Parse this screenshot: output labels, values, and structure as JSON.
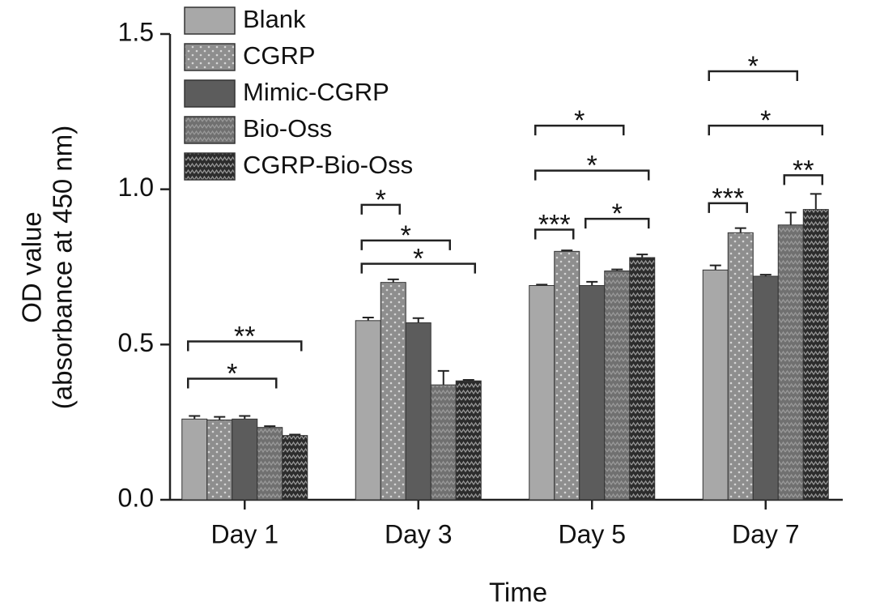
{
  "chart_data": {
    "type": "bar",
    "xlabel": "Time",
    "ylabel": [
      "OD value",
      "(absorbance at 450 nm)"
    ],
    "categories": [
      "Day 1",
      "Day 3",
      "Day 5",
      "Day 7"
    ],
    "ylim": [
      0,
      1.5
    ],
    "yticks": [
      {
        "value": 0,
        "label": "0.0"
      },
      0.5,
      {
        "value": 1,
        "label": "1.0"
      },
      1.5
    ],
    "legend": "top-left",
    "series": [
      {
        "name": "Blank",
        "color": "#a8a8a8",
        "pattern": "solid",
        "values": [
          0.26,
          0.577,
          0.69,
          0.74
        ],
        "errors": [
          0.01,
          0.01,
          0.003,
          0.015
        ]
      },
      {
        "name": "CGRP",
        "color": "#8e8e8e",
        "pattern": "dots",
        "values": [
          0.257,
          0.7,
          0.8,
          0.86
        ],
        "errors": [
          0.01,
          0.01,
          0.003,
          0.015
        ]
      },
      {
        "name": "Mimic-CGRP",
        "color": "#5c5c5c",
        "pattern": "solid",
        "values": [
          0.26,
          0.57,
          0.69,
          0.72
        ],
        "errors": [
          0.01,
          0.015,
          0.012,
          0.005
        ]
      },
      {
        "name": "Bio-Oss",
        "color": "#707070",
        "pattern": "zigzag",
        "values": [
          0.233,
          0.37,
          0.737,
          0.885
        ],
        "errors": [
          0.004,
          0.045,
          0.005,
          0.04
        ]
      },
      {
        "name": "CGRP-Bio-Oss",
        "color": "#2c2c2c",
        "pattern": "zigzag",
        "values": [
          0.207,
          0.383,
          0.78,
          0.935
        ],
        "errors": [
          0.003,
          0.003,
          0.01,
          0.05
        ]
      }
    ],
    "significance": [
      {
        "category": "Day 1",
        "from": "Blank",
        "to": "Bio-Oss",
        "label": "*",
        "y": 0.39
      },
      {
        "category": "Day 1",
        "from": "Blank",
        "to": "CGRP-Bio-Oss",
        "label": "**",
        "y": 0.51
      },
      {
        "category": "Day 3",
        "from": "Blank",
        "to": "CGRP",
        "label": "*",
        "y": 0.95
      },
      {
        "category": "Day 3",
        "from": "Blank",
        "to": "Bio-Oss",
        "label": "*",
        "y": 0.835
      },
      {
        "category": "Day 3",
        "from": "Blank",
        "to": "CGRP-Bio-Oss",
        "label": "*",
        "y": 0.76
      },
      {
        "category": "Day 5",
        "from": "Blank",
        "to": "CGRP",
        "label": "***",
        "y": 0.87
      },
      {
        "category": "Day 5",
        "from": "Mimic-CGRP",
        "to": "CGRP-Bio-Oss",
        "label": "*",
        "y": 0.905
      },
      {
        "category": "Day 5",
        "from": "Blank",
        "to": "CGRP-Bio-Oss",
        "label": "*",
        "y": 1.06
      },
      {
        "category": "Day 5",
        "from": "Blank",
        "to": "Bio-Oss",
        "label": "*",
        "y": 1.205
      },
      {
        "category": "Day 7",
        "from": "Blank",
        "to": "CGRP",
        "label": "***",
        "y": 0.955
      },
      {
        "category": "Day 7",
        "from": "Bio-Oss",
        "to": "CGRP-Bio-Oss",
        "label": "**",
        "y": 1.045
      },
      {
        "category": "Day 7",
        "from": "Blank",
        "to": "CGRP-Bio-Oss",
        "label": "*",
        "y": 1.205
      },
      {
        "category": "Day 7",
        "from": "Blank",
        "to": "Bio-Oss",
        "label": "*",
        "y": 1.38
      }
    ]
  }
}
